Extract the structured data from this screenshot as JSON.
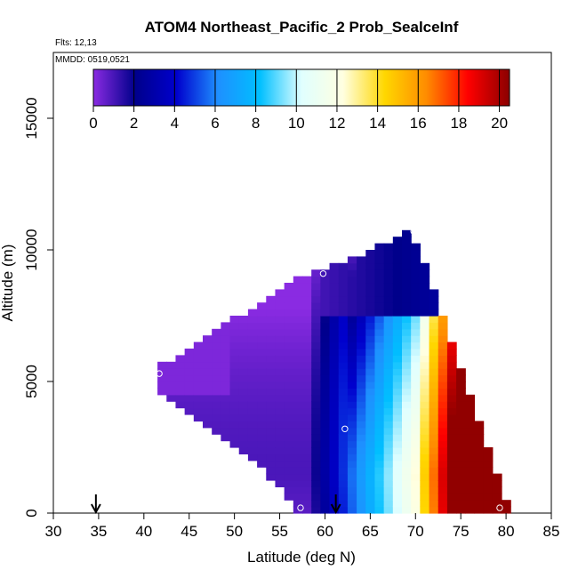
{
  "chart_data": {
    "type": "heatmap",
    "title": "ATOM4 Northeast_Pacific_2 Prob_SealceInf",
    "flights_note": "Flts: 12,13",
    "dates_note": "MMDD: 0519,0521",
    "xlabel": "Latitude (deg N)",
    "ylabel": "Altitude (m)",
    "xlim": [
      30,
      85
    ],
    "ylim": [
      0,
      17500
    ],
    "x_ticks": [
      "30",
      "35",
      "40",
      "45",
      "50",
      "55",
      "60",
      "65",
      "70",
      "75",
      "80",
      "85"
    ],
    "y_ticks": [
      "0",
      "5000",
      "10000",
      "15000"
    ],
    "colorbar": {
      "range": [
        0,
        20.5
      ],
      "ticks": [
        "0",
        "2",
        "4",
        "6",
        "8",
        "10",
        "12",
        "14",
        "16",
        "18",
        "20"
      ],
      "colors": [
        "#8a2be2",
        "#00008b",
        "#0000cd",
        "#1e90ff",
        "#00bfff",
        "#e0ffff",
        "#ffffe0",
        "#ffd700",
        "#ff8c00",
        "#ff0000",
        "#8b0000"
      ]
    },
    "field_description": "Probability field over latitude-altitude; low values (purple/dark blue) at low latitudes and mid altitudes, increasing toward high latitudes and near the surface (orange/red near 78-80N, 0-2000 m).",
    "envelope": [
      {
        "lat": 41.5,
        "alt_low": 4700,
        "alt_high": 5600
      },
      {
        "lat": 44,
        "alt_low": 4000,
        "alt_high": 6000
      },
      {
        "lat": 48,
        "alt_low": 3000,
        "alt_high": 7000
      },
      {
        "lat": 52,
        "alt_low": 2000,
        "alt_high": 7800
      },
      {
        "lat": 55,
        "alt_low": 1000,
        "alt_high": 8500
      },
      {
        "lat": 57,
        "alt_low": 0,
        "alt_high": 9000
      },
      {
        "lat": 60,
        "alt_low": 0,
        "alt_high": 9300
      },
      {
        "lat": 63.5,
        "alt_low": 0,
        "alt_high": 9800
      },
      {
        "lat": 67,
        "alt_low": 0,
        "alt_high": 10300
      },
      {
        "lat": 69.5,
        "alt_low": 0,
        "alt_high": 10800
      },
      {
        "lat": 71,
        "alt_low": 0,
        "alt_high": 9500
      },
      {
        "lat": 73,
        "alt_low": 0,
        "alt_high": 7500
      },
      {
        "lat": 75,
        "alt_low": 0,
        "alt_high": 5500
      },
      {
        "lat": 77,
        "alt_low": 0,
        "alt_high": 3500
      },
      {
        "lat": 79,
        "alt_low": 0,
        "alt_high": 1500
      },
      {
        "lat": 80,
        "alt_low": 0,
        "alt_high": 400
      }
    ],
    "sample_points": [
      {
        "lat": 41.7,
        "alt": 5300
      },
      {
        "lat": 59.8,
        "alt": 9100
      },
      {
        "lat": 69.8,
        "alt": 10700
      },
      {
        "lat": 62.2,
        "alt": 3200
      },
      {
        "lat": 57.3,
        "alt": 200
      },
      {
        "lat": 79.3,
        "alt": 200
      }
    ],
    "arrows": [
      {
        "lat": 34.7
      },
      {
        "lat": 61.2
      }
    ]
  }
}
